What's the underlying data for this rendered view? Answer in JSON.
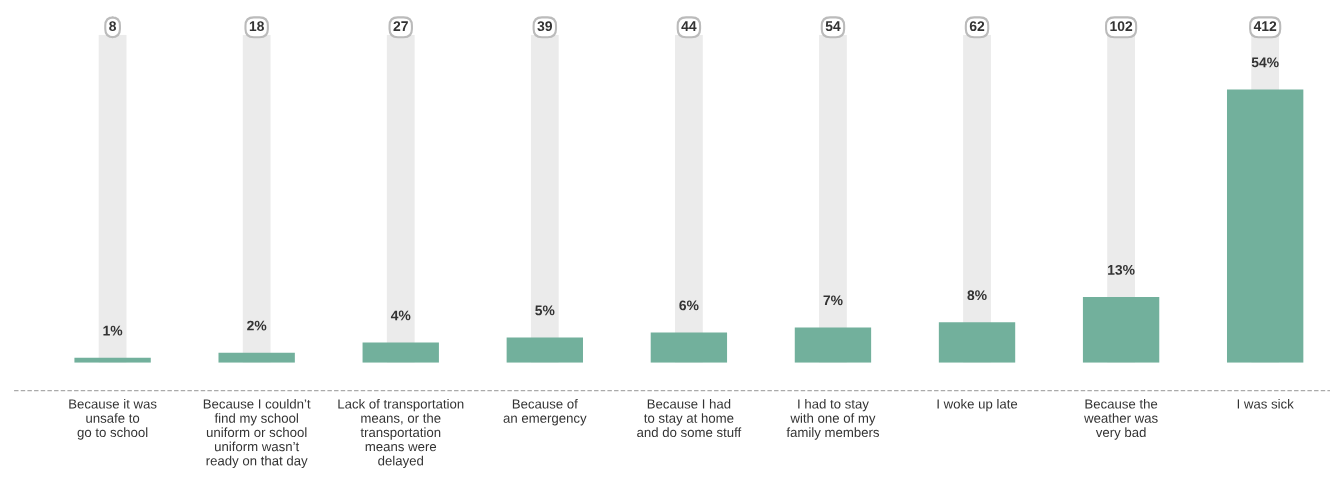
{
  "chart_data": {
    "type": "bar",
    "categories": [
      "Because it was\nunsafe to\ngo to school",
      "Because I couldn’t\nfind my school\nuniform or school\nuniform wasn’t\nready on that day",
      "Lack of transportation\nmeans, or the\ntransportation\nmeans were\ndelayed",
      "Because of\nan emergency",
      "Because I had\nto stay at home\nand do some stuff",
      "I had to stay\nwith one of my\nfamily members",
      "I woke up late",
      "Because the\nweather was\nvery bad",
      "I was sick"
    ],
    "series": [
      {
        "color": "#72b09c",
        "values": [
          1,
          2,
          4,
          5,
          6,
          7,
          8,
          13,
          54
        ],
        "value_labels": [
          "1%",
          "2%",
          "4%",
          "5%",
          "6%",
          "7%",
          "8%",
          "13%",
          "54%"
        ]
      }
    ],
    "annotations": [
      "8",
      "18",
      "27",
      "39",
      "44",
      "54",
      "62",
      "102",
      "412"
    ],
    "tick_labels": "x",
    "grid": "x",
    "legend": false
  }
}
